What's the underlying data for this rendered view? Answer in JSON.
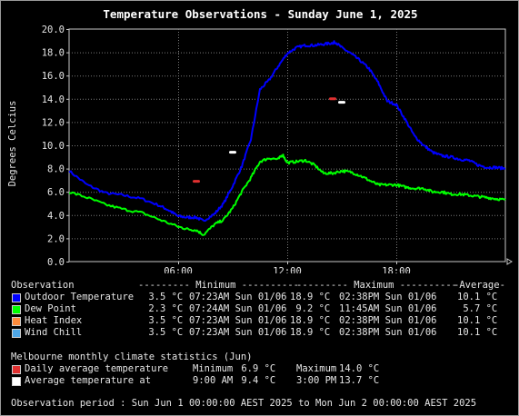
{
  "title": "Temperature Observations - Sunday June 1, 2025",
  "chart_data": {
    "type": "line",
    "ylabel": "Degrees Celcius",
    "xlabel": "",
    "x_unit": "hour of day",
    "xlim": [
      0,
      24
    ],
    "ylim": [
      0,
      20
    ],
    "x_ticks": [
      6,
      12,
      18
    ],
    "x_tick_labels": [
      "06:00",
      "12:00",
      "18:00"
    ],
    "y_ticks": [
      0.0,
      2.0,
      4.0,
      6.0,
      8.0,
      10.0,
      12.0,
      14.0,
      16.0,
      18.0,
      20.0
    ],
    "y_tick_labels": [
      "0.0",
      "2.0",
      "4.0",
      "6.0",
      "8.0",
      "10.0",
      "12.0",
      "14.0",
      "16.0",
      "18.0",
      "20.0"
    ],
    "grid": true,
    "series": [
      {
        "name": "Outdoor Temperature",
        "color": "#0000ff",
        "x": [
          0,
          1,
          2,
          3,
          4,
          5,
          5.5,
          6,
          6.5,
          7,
          7.38,
          8,
          8.5,
          9,
          9.5,
          10,
          10.5,
          11,
          11.5,
          12,
          12.5,
          13,
          13.5,
          14,
          14.5,
          14.63,
          15,
          15.5,
          16,
          16.5,
          17,
          17.5,
          18,
          18.5,
          19,
          19.5,
          20,
          20.5,
          21,
          21.5,
          22,
          22.5,
          23,
          23.5,
          24
        ],
        "y": [
          7.8,
          6.6,
          5.9,
          5.7,
          5.4,
          4.8,
          4.4,
          3.9,
          3.8,
          3.8,
          3.5,
          4.1,
          5.0,
          6.5,
          8.2,
          10.5,
          14.8,
          15.6,
          16.8,
          17.9,
          18.4,
          18.6,
          18.6,
          18.7,
          18.8,
          18.9,
          18.4,
          17.9,
          17.3,
          16.6,
          15.4,
          13.8,
          13.5,
          12.2,
          10.8,
          10.0,
          9.4,
          9.1,
          9.0,
          8.8,
          8.7,
          8.3,
          8.1,
          8.1,
          8.0
        ]
      },
      {
        "name": "Dew Point",
        "color": "#00ff00",
        "x": [
          0,
          1,
          2,
          3,
          4,
          5,
          6,
          6.5,
          7,
          7.4,
          8,
          8.5,
          9,
          9.5,
          10,
          10.5,
          11,
          11.5,
          11.75,
          12,
          12.5,
          13,
          13.5,
          14,
          14.5,
          15,
          15.5,
          16,
          16.5,
          17,
          17.5,
          18,
          18.5,
          19,
          19.5,
          20,
          20.5,
          21,
          21.5,
          22,
          22.5,
          23,
          23.5,
          24
        ],
        "y": [
          6.0,
          5.5,
          4.9,
          4.5,
          4.2,
          3.6,
          3.0,
          2.8,
          2.7,
          2.3,
          3.2,
          3.6,
          4.6,
          6.0,
          7.2,
          8.6,
          8.9,
          8.8,
          9.2,
          8.5,
          8.6,
          8.7,
          8.3,
          7.6,
          7.6,
          7.8,
          7.7,
          7.4,
          7.0,
          6.6,
          6.6,
          6.6,
          6.4,
          6.3,
          6.3,
          6.0,
          6.0,
          5.8,
          5.8,
          5.7,
          5.6,
          5.5,
          5.4,
          5.3
        ]
      },
      {
        "name": "Heat Index",
        "color": "#ff8c3c"
      },
      {
        "name": "Wind Chill",
        "color": "#4fa8e8"
      }
    ],
    "markers": [
      {
        "name": "Daily average temperature",
        "color": "#e03030",
        "points": [
          [
            7,
            6.9
          ],
          [
            14.5,
            14.0
          ]
        ]
      },
      {
        "name": "Average temperature at",
        "color": "#ffffff",
        "points": [
          [
            9,
            9.4
          ],
          [
            15,
            13.7
          ]
        ]
      }
    ]
  },
  "observation_table": {
    "header": [
      "Observation",
      "--------- Minimum ----------",
      "--------- Maximum ----------",
      "-Average-"
    ],
    "rows": [
      {
        "label": "Outdoor Temperature",
        "color": "#0000ff",
        "min": " 3.5 °C",
        "min_time": "07:23AM Sun 01/06",
        "max": "18.9 °C",
        "max_time": "02:38PM Sun 01/06",
        "avg": "10.1 °C"
      },
      {
        "label": "Dew Point",
        "color": "#00ff00",
        "min": " 2.3 °C",
        "min_time": "07:24AM Sun 01/06",
        "max": " 9.2 °C",
        "max_time": "11:45AM Sun 01/06",
        "avg": " 5.7 °C"
      },
      {
        "label": "Heat Index",
        "color": "#ff8c3c",
        "min": " 3.5 °C",
        "min_time": "07:23AM Sun 01/06",
        "max": "18.9 °C",
        "max_time": "02:38PM Sun 01/06",
        "avg": "10.1 °C"
      },
      {
        "label": "Wind Chill",
        "color": "#4fa8e8",
        "min": " 3.5 °C",
        "min_time": "07:23AM Sun 01/06",
        "max": "18.9 °C",
        "max_time": "02:38PM Sun 01/06",
        "avg": "10.1 °C"
      }
    ]
  },
  "climate": {
    "heading": "Melbourne monthly climate statistics (Jun)",
    "rows": [
      {
        "label": "Daily average temperature",
        "color": "#e03030",
        "c1_label": "Minimum",
        "c1_value": " 6.9 °C",
        "c2_label": "Maximum",
        "c2_value": "14.0 °C"
      },
      {
        "label": "Average temperature at",
        "color": "#ffffff",
        "c1_label": "9:00 AM",
        "c1_value": " 9.4 °C",
        "c2_label": "3:00 PM",
        "c2_value": "13.7 °C"
      }
    ]
  },
  "period": "Observation period : Sun Jun 1 00:00:00 AEST 2025 to Mon Jun 2 00:00:00 AEST 2025"
}
